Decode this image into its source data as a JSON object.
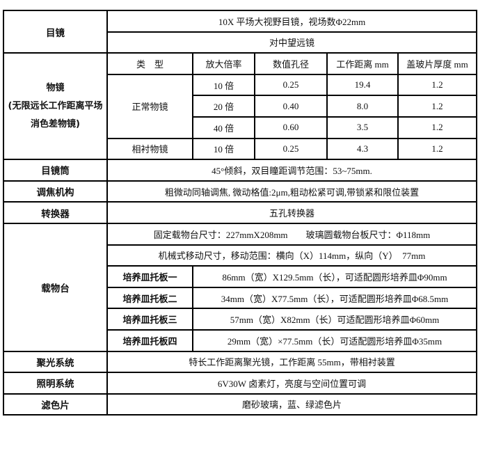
{
  "eyepiece": {
    "label": "目镜",
    "line1": "10X 平场大视野目镜，视场数Φ22mm",
    "line2": "对中望远镜"
  },
  "objective": {
    "label_line1": "物镜",
    "label_line2": "(无限远长工作距离平场",
    "label_line3": "消色差物镜)",
    "headers": [
      "类　型",
      "放大倍率",
      "数值孔径",
      "工作距离 mm",
      "盖玻片厚度 mm"
    ],
    "groups": [
      {
        "type": "正常物镜",
        "rows": [
          {
            "mag": "10 倍",
            "na": "0.25",
            "wd": "19.4",
            "cover": "1.2"
          },
          {
            "mag": "20 倍",
            "na": "0.40",
            "wd": "8.0",
            "cover": "1.2"
          },
          {
            "mag": "40 倍",
            "na": "0.60",
            "wd": "3.5",
            "cover": "1.2"
          }
        ]
      },
      {
        "type": "相衬物镜",
        "rows": [
          {
            "mag": "10 倍",
            "na": "0.25",
            "wd": "4.3",
            "cover": "1.2"
          }
        ]
      }
    ]
  },
  "tube": {
    "label": "目镜筒",
    "value": "45°倾斜，双目瞳距调节范围：53~75mm."
  },
  "focus": {
    "label": "调焦机构",
    "value": "粗微动同轴调焦, 微动格值:2μm,粗动松紧可调,带锁紧和限位装置"
  },
  "nosepiece": {
    "label": "转换器",
    "value": "五孔转换器"
  },
  "stage": {
    "label": "载物台",
    "line1": "固定载物台尺寸：227mmX208mm　　玻璃圆载物台板尺寸：Φ118mm",
    "line2": "机械式移动尺寸，移动范围：横向（X）114mm，纵向（Y）　77mm",
    "plates": [
      {
        "name": "培养皿托板一",
        "value": "86mm（宽）X129.5mm（长），可适配圆形培养皿Φ90mm"
      },
      {
        "name": "培养皿托板二",
        "value": "34mm（宽）X77.5mm（长），可适配圆形培养皿Φ68.5mm"
      },
      {
        "name": "培养皿托板三",
        "value": "57mm（宽）X82mm（长）可适配圆形培养皿Φ60mm"
      },
      {
        "name": "培养皿托板四",
        "value": "29mm（宽）×77.5mm（长）可适配圆形培养皿Φ35mm"
      }
    ]
  },
  "condenser": {
    "label": "聚光系统",
    "value": "特长工作距离聚光镜，工作距离 55mm，带相衬装置"
  },
  "illumination": {
    "label": "照明系统",
    "value": "6V30W 卤素灯，亮度与空间位置可调"
  },
  "filter": {
    "label": "滤色片",
    "value": "磨砂玻璃，蓝、绿滤色片"
  }
}
